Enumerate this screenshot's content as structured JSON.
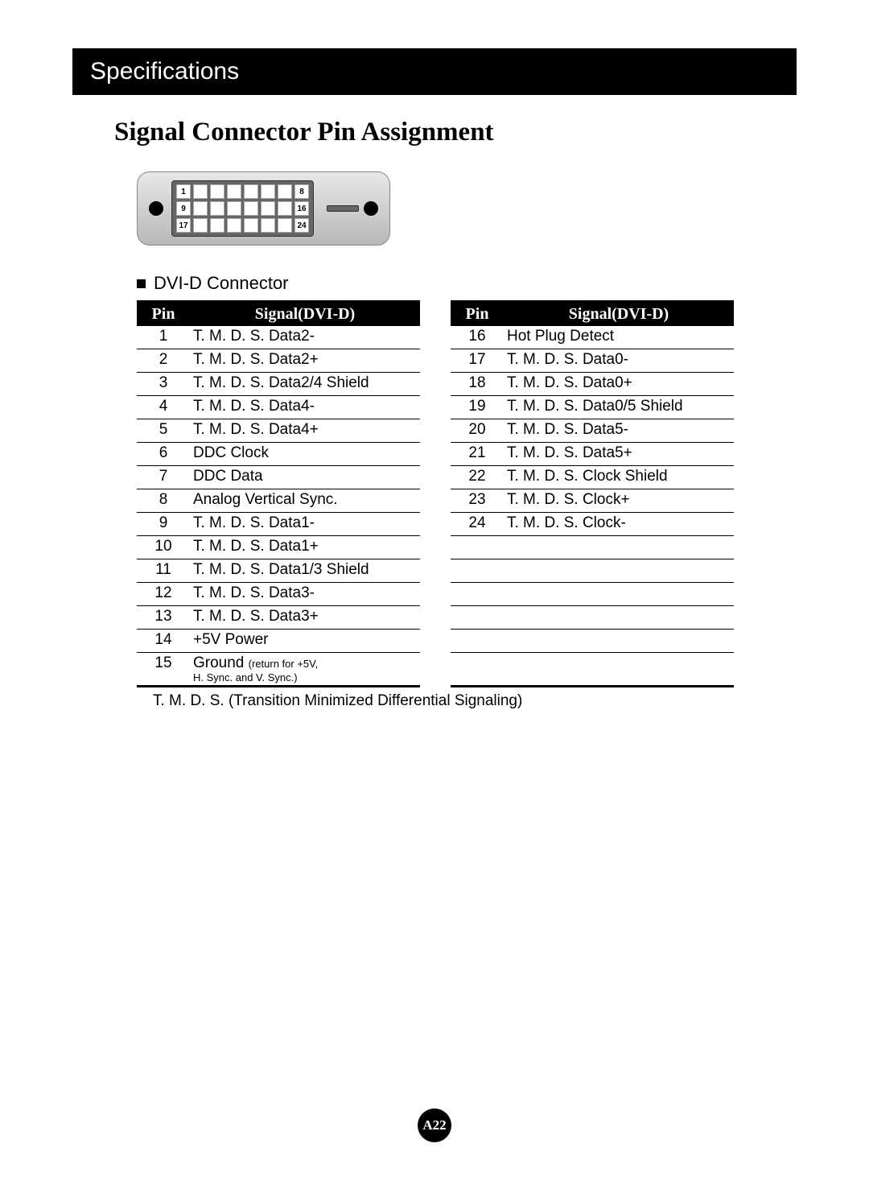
{
  "header": "Specifications",
  "title": "Signal Connector Pin Assignment",
  "diagram": {
    "row1": [
      "1",
      "",
      "",
      "",
      "",
      "",
      "",
      "8"
    ],
    "row2": [
      "9",
      "",
      "",
      "",
      "",
      "",
      "",
      "16"
    ],
    "row3": [
      "17",
      "",
      "",
      "",
      "",
      "",
      "",
      "24"
    ]
  },
  "connectorLabel": "DVI-D Connector",
  "tableHead": {
    "pin": "Pin",
    "signal": "Signal(DVI-D)"
  },
  "left": [
    {
      "pin": "1",
      "sig": "T. M. D. S. Data2-"
    },
    {
      "pin": "2",
      "sig": "T. M. D. S. Data2+"
    },
    {
      "pin": "3",
      "sig": "T. M. D. S. Data2/4 Shield"
    },
    {
      "pin": "4",
      "sig": "T. M. D. S. Data4-"
    },
    {
      "pin": "5",
      "sig": "T. M. D. S. Data4+"
    },
    {
      "pin": "6",
      "sig": "DDC Clock"
    },
    {
      "pin": "7",
      "sig": "DDC Data"
    },
    {
      "pin": "8",
      "sig": "Analog Vertical Sync."
    },
    {
      "pin": "9",
      "sig": "T. M. D. S. Data1-"
    },
    {
      "pin": "10",
      "sig": "T. M. D. S. Data1+"
    },
    {
      "pin": "11",
      "sig": "T. M. D. S. Data1/3 Shield"
    },
    {
      "pin": "12",
      "sig": "T. M. D. S. Data3-"
    },
    {
      "pin": "13",
      "sig": "T. M. D. S. Data3+"
    },
    {
      "pin": "14",
      "sig": "+5V Power"
    },
    {
      "pin": "15",
      "sig": "Ground ",
      "sub": "(return for +5V,",
      "sub2": "H. Sync. and V. Sync.)"
    }
  ],
  "right": [
    {
      "pin": "16",
      "sig": "Hot Plug Detect"
    },
    {
      "pin": "17",
      "sig": "T. M. D. S. Data0-"
    },
    {
      "pin": "18",
      "sig": "T. M. D. S. Data0+"
    },
    {
      "pin": "19",
      "sig": "T. M. D. S. Data0/5 Shield"
    },
    {
      "pin": "20",
      "sig": "T. M. D. S. Data5-"
    },
    {
      "pin": "21",
      "sig": "T. M. D. S. Data5+"
    },
    {
      "pin": "22",
      "sig": "T. M. D. S. Clock Shield"
    },
    {
      "pin": "23",
      "sig": "T. M. D. S. Clock+"
    },
    {
      "pin": "24",
      "sig": "T. M. D. S. Clock-"
    },
    {
      "pin": "",
      "sig": ""
    },
    {
      "pin": "",
      "sig": ""
    },
    {
      "pin": "",
      "sig": ""
    },
    {
      "pin": "",
      "sig": ""
    },
    {
      "pin": "",
      "sig": ""
    },
    {
      "pin": "",
      "sig": ""
    }
  ],
  "footnote": "T. M. D. S. (Transition Minimized Differential Signaling)",
  "pageNumber": "A22",
  "colors": {
    "headerBg": "#000000",
    "headerText": "#ffffff",
    "tableHeadBg": "#000000",
    "pageBg": "#ffffff"
  }
}
